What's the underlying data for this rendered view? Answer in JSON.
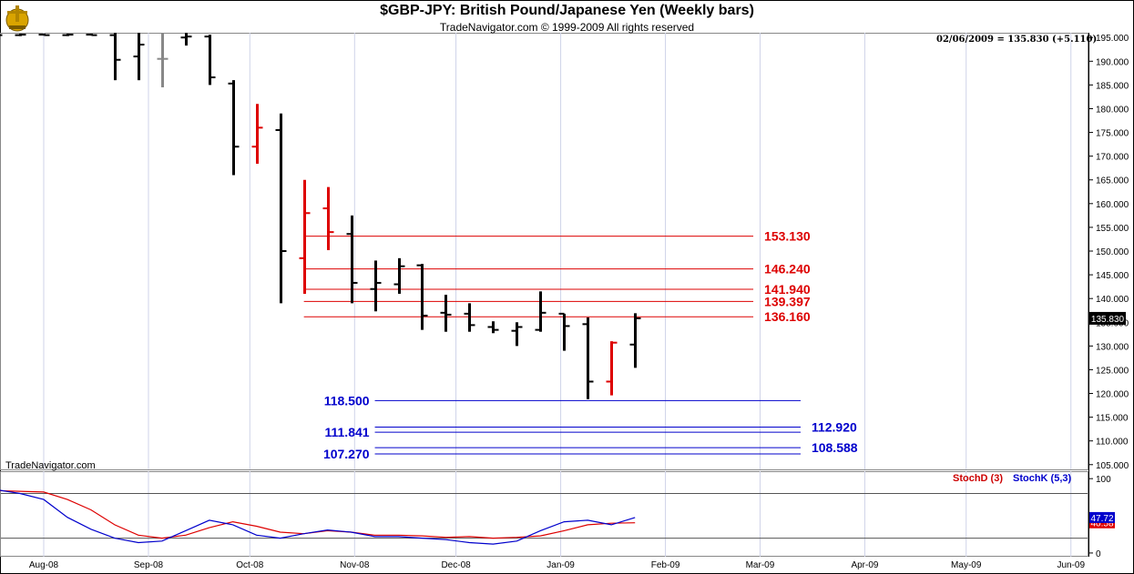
{
  "header": {
    "title": "$GBP-JPY:  British Pound/Japanese Yen  (Weekly bars)",
    "subtitle": "TradeNavigator.com © 1999-2009 All rights reserved",
    "readout": "02/06/2009 = 135.830 (+5.110)",
    "watermark": "TradeNavigator.com"
  },
  "chart_data": [
    {
      "type": "ohlc",
      "title": "$GBP-JPY:  British Pound/Japanese Yen  (Weekly bars)",
      "ylim": [
        104,
        196
      ],
      "y_ticks": [
        "195.000",
        "190.000",
        "185.000",
        "180.000",
        "175.000",
        "170.000",
        "165.000",
        "160.000",
        "155.000",
        "150.000",
        "145.000",
        "140.000",
        "135.000",
        "130.000",
        "125.000",
        "120.000",
        "115.000",
        "110.000",
        "105.000"
      ],
      "y_tick_values": [
        195,
        190,
        185,
        180,
        175,
        170,
        165,
        160,
        155,
        150,
        145,
        140,
        135,
        130,
        125,
        120,
        115,
        110,
        105
      ],
      "x_ticks": [
        "Aug-08",
        "Sep-08",
        "Oct-08",
        "Nov-08",
        "Dec-08",
        "Jan-09",
        "Feb-09",
        "Mar-09",
        "Apr-09",
        "May-09",
        "Jun-09"
      ],
      "x_tick_dates": [
        "2008-08-01",
        "2008-09-01",
        "2008-10-01",
        "2008-11-01",
        "2008-12-01",
        "2009-01-01",
        "2009-02-01",
        "2009-03-01",
        "2009-04-01",
        "2009-05-01",
        "2009-06-01"
      ],
      "last_price_label": "135.830",
      "last_price": 135.83,
      "colors": {
        "up": "#000000",
        "down_red": "#dd0000",
        "gray": "#888888",
        "green": "#00bb00"
      },
      "bars": [
        {
          "date": "2008-07-11",
          "o": 195.5,
          "h": 195.8,
          "l": 195.3,
          "c": 195.6,
          "color": "#000000"
        },
        {
          "date": "2008-07-18",
          "o": 195.6,
          "h": 195.8,
          "l": 195.4,
          "c": 195.5,
          "color": "#000000"
        },
        {
          "date": "2008-07-25",
          "o": 195.5,
          "h": 195.8,
          "l": 195.3,
          "c": 195.6,
          "color": "#000000"
        },
        {
          "date": "2008-08-01",
          "o": 195.6,
          "h": 195.8,
          "l": 195.4,
          "c": 195.5,
          "color": "#000000"
        },
        {
          "date": "2008-08-08",
          "o": 195.5,
          "h": 195.8,
          "l": 195.3,
          "c": 195.6,
          "color": "#000000"
        },
        {
          "date": "2008-08-15",
          "o": 195.6,
          "h": 195.8,
          "l": 195.4,
          "c": 195.5,
          "color": "#000000"
        },
        {
          "date": "2008-08-22",
          "o": 195.5,
          "h": 196,
          "l": 186,
          "c": 190.3,
          "color": "#000000"
        },
        {
          "date": "2008-08-29",
          "o": 191,
          "h": 196,
          "l": 186,
          "c": 193.5,
          "color": "#000000"
        },
        {
          "date": "2008-09-05",
          "o": 190.5,
          "h": 196,
          "l": 184.5,
          "c": 190.5,
          "color": "#888888"
        },
        {
          "date": "2008-09-12",
          "o": 195,
          "h": 196,
          "l": 193.3,
          "c": 195.2,
          "color": "#000000"
        },
        {
          "date": "2008-09-19",
          "o": 195.2,
          "h": 195.6,
          "l": 185,
          "c": 186.6,
          "color": "#000000"
        },
        {
          "date": "2008-09-26",
          "o": 185.3,
          "h": 186,
          "l": 166,
          "c": 172,
          "color": "#000000"
        },
        {
          "date": "2008-10-03",
          "o": 172,
          "h": 181,
          "l": 168.4,
          "c": 176,
          "color": "#dd0000"
        },
        {
          "date": "2008-10-10",
          "o": 175.5,
          "h": 179,
          "l": 139,
          "c": 150,
          "color": "#000000"
        },
        {
          "date": "2008-10-17",
          "o": 148.5,
          "h": 165,
          "l": 141,
          "c": 158,
          "color": "#dd0000"
        },
        {
          "date": "2008-10-24",
          "o": 159,
          "h": 163.5,
          "l": 150.2,
          "c": 154,
          "color": "#dd0000"
        },
        {
          "date": "2008-10-31",
          "o": 153.6,
          "h": 157.5,
          "l": 139,
          "c": 143.3,
          "color": "#000000"
        },
        {
          "date": "2008-11-07",
          "o": 142,
          "h": 148,
          "l": 137.3,
          "c": 143.3,
          "color": "#000000"
        },
        {
          "date": "2008-11-14",
          "o": 143,
          "h": 148.5,
          "l": 141,
          "c": 146.8,
          "color": "#000000"
        },
        {
          "date": "2008-11-21",
          "o": 147,
          "h": 147.3,
          "l": 133.4,
          "c": 136.4,
          "color": "#000000"
        },
        {
          "date": "2008-11-28",
          "o": 137,
          "h": 140.8,
          "l": 133,
          "c": 136.6,
          "color": "#000000"
        },
        {
          "date": "2008-12-05",
          "o": 136.8,
          "h": 139,
          "l": 133,
          "c": 134.4,
          "color": "#000000"
        },
        {
          "date": "2008-12-12",
          "o": 134,
          "h": 135.2,
          "l": 132.7,
          "c": 133.4,
          "color": "#000000"
        },
        {
          "date": "2008-12-19",
          "o": 133.2,
          "h": 135,
          "l": 130,
          "c": 134,
          "color": "#000000"
        },
        {
          "date": "2008-12-26",
          "o": 133.4,
          "h": 141.5,
          "l": 133,
          "c": 137,
          "color": "#000000"
        },
        {
          "date": "2009-01-02",
          "o": 136.8,
          "h": 136.8,
          "l": 129,
          "c": 134.2,
          "color": "#000000"
        },
        {
          "date": "2009-01-09",
          "o": 134.6,
          "h": 136,
          "l": 118.8,
          "c": 122.5,
          "color": "#000000"
        },
        {
          "date": "2009-01-16",
          "o": 122.5,
          "h": 131,
          "l": 119.6,
          "c": 130.7,
          "color": "#dd0000"
        },
        {
          "date": "2009-01-23",
          "o": 130.3,
          "h": 136.9,
          "l": 125.4,
          "c": 135.83,
          "color": "#000000"
        }
      ],
      "levels": [
        {
          "label": "153.130",
          "value": 153.13,
          "color": "#dd0000",
          "from": "2008-10-17",
          "to": "2009-02-27",
          "label_side": "right"
        },
        {
          "label": "146.240",
          "value": 146.24,
          "color": "#dd0000",
          "from": "2008-10-17",
          "to": "2009-02-27",
          "label_side": "right"
        },
        {
          "label": "141.940",
          "value": 141.94,
          "color": "#dd0000",
          "from": "2008-10-17",
          "to": "2009-02-27",
          "label_side": "right"
        },
        {
          "label": "139.397",
          "value": 139.397,
          "color": "#dd0000",
          "from": "2008-10-17",
          "to": "2009-02-27",
          "label_side": "right"
        },
        {
          "label": "136.160",
          "value": 136.16,
          "color": "#dd0000",
          "from": "2008-10-17",
          "to": "2009-02-27",
          "label_side": "right"
        },
        {
          "label": "118.500",
          "value": 118.5,
          "color": "#0000cc",
          "from": "2008-11-07",
          "to": "2009-03-13",
          "label_side": "left"
        },
        {
          "label": "112.920",
          "value": 112.92,
          "color": "#0000cc",
          "from": "2008-11-07",
          "to": "2009-03-13",
          "label_side": "right"
        },
        {
          "label": "111.841",
          "value": 111.841,
          "color": "#0000cc",
          "from": "2008-11-07",
          "to": "2009-03-13",
          "label_side": "left"
        },
        {
          "label": "108.588",
          "value": 108.588,
          "color": "#0000cc",
          "from": "2008-11-07",
          "to": "2009-03-13",
          "label_side": "right"
        },
        {
          "label": "107.270",
          "value": 107.27,
          "color": "#0000cc",
          "from": "2008-11-07",
          "to": "2009-03-13",
          "label_side": "left"
        }
      ]
    },
    {
      "type": "line",
      "ylim": [
        -5,
        110
      ],
      "y_ticks": [
        "100",
        "50",
        "0"
      ],
      "y_tick_values": [
        100,
        50,
        0
      ],
      "reference_lines": [
        80,
        20
      ],
      "last_labels": [
        {
          "label": "40.58",
          "value": 40.58,
          "color": "#dd0000"
        },
        {
          "label": "47.72",
          "value": 47.72,
          "color": "#0000cc"
        }
      ],
      "x": [
        "2008-07-11",
        "2008-07-18",
        "2008-07-25",
        "2008-08-01",
        "2008-08-08",
        "2008-08-15",
        "2008-08-22",
        "2008-08-29",
        "2008-09-05",
        "2008-09-12",
        "2008-09-19",
        "2008-09-26",
        "2008-10-03",
        "2008-10-10",
        "2008-10-17",
        "2008-10-24",
        "2008-10-31",
        "2008-11-07",
        "2008-11-14",
        "2008-11-21",
        "2008-11-28",
        "2008-12-05",
        "2008-12-12",
        "2008-12-19",
        "2008-12-26",
        "2009-01-02",
        "2009-01-09",
        "2009-01-16",
        "2009-01-23"
      ],
      "series": [
        {
          "name": "StochD (3)",
          "color": "#dd0000",
          "values": [
            84,
            84,
            83,
            82,
            72,
            58,
            38,
            24,
            20,
            24,
            34,
            42,
            36,
            28,
            26,
            30,
            28,
            24,
            24,
            23,
            21,
            22,
            20,
            21,
            23,
            30,
            38,
            40,
            40.58
          ]
        },
        {
          "name": "StochK (5,3)",
          "color": "#0000cc",
          "values": [
            84,
            85,
            80,
            72,
            48,
            32,
            20,
            14,
            16,
            30,
            44,
            38,
            24,
            20,
            26,
            31,
            28,
            22,
            22,
            20,
            18,
            14,
            12,
            16,
            30,
            42,
            44,
            38,
            47.72
          ]
        }
      ]
    }
  ]
}
